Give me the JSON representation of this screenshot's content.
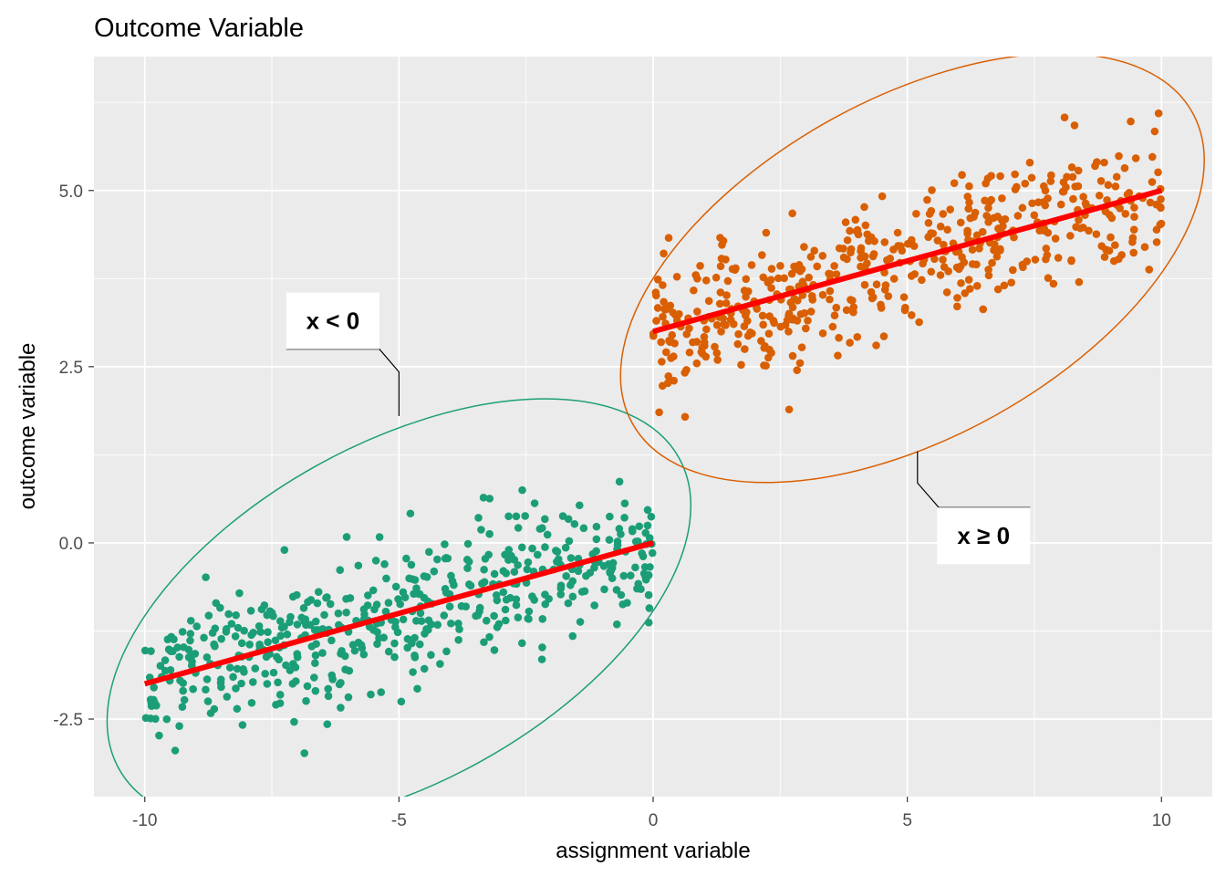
{
  "chart_data": {
    "type": "scatter",
    "title": "Outcome Variable",
    "xlabel": "assignment variable",
    "ylabel": "outcome variable",
    "xlim": [
      -11,
      11
    ],
    "ylim": [
      -3.6,
      6.9
    ],
    "x_ticks": [
      -10,
      -5,
      0,
      5,
      10
    ],
    "x_tick_labels": [
      "-10",
      "-5",
      "0",
      "5",
      "10"
    ],
    "y_ticks": [
      -2.5,
      0,
      2.5,
      5
    ],
    "y_tick_labels": [
      "-2.5",
      "0.0",
      "2.5",
      "5.0"
    ],
    "grid": true,
    "background_color": "#ebebeb",
    "series": [
      {
        "group": "x < 0",
        "color": "#1b9e77",
        "x_range": [
          -10,
          0
        ],
        "fit_line": {
          "x": [
            -10,
            0
          ],
          "y": [
            -2,
            0
          ]
        },
        "residual_sd": 0.5,
        "n_points": 500,
        "ellipse": {
          "cx": -5.0,
          "cy": -1.0,
          "rx": 6.3,
          "ry": 2.4,
          "angle_deg": -29
        }
      },
      {
        "group": "x ≥ 0",
        "color": "#d95f02",
        "x_range": [
          0,
          10
        ],
        "fit_line": {
          "x": [
            0,
            10
          ],
          "y": [
            3,
            5
          ]
        },
        "residual_sd": 0.5,
        "n_points": 500,
        "ellipse": {
          "cx": 5.1,
          "cy": 3.9,
          "rx": 6.3,
          "ry": 2.4,
          "angle_deg": -29
        }
      }
    ],
    "fit_line_color": "#ff0000",
    "annotations": [
      {
        "label": "x < 0",
        "label_x": -6.3,
        "label_y": 3.15,
        "point_x": -5.0,
        "point_y": 1.8
      },
      {
        "label": "x ≥ 0",
        "label_x": 6.5,
        "label_y": 0.1,
        "point_x": 5.2,
        "point_y": 1.3
      }
    ]
  }
}
